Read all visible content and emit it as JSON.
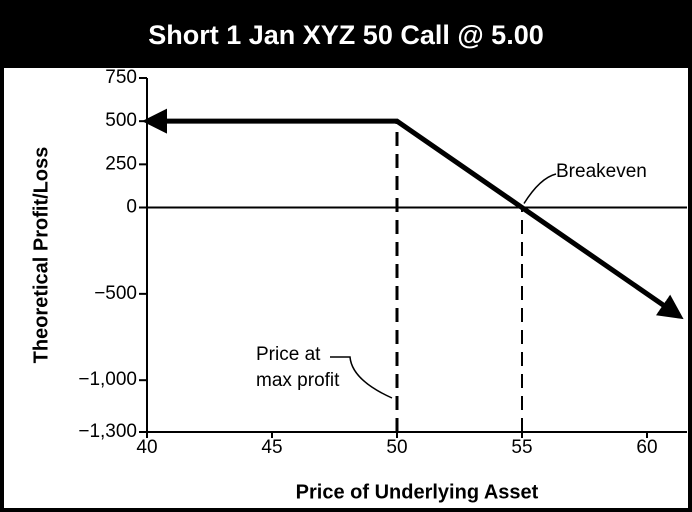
{
  "chart_data": {
    "type": "line",
    "title": "Short 1 Jan XYZ 50 Call @ 5.00",
    "x_label": "Price of Underlying Asset",
    "y_label": "Theoretical Profit/Loss",
    "x": [
      40,
      50,
      55,
      61.3
    ],
    "series": [
      {
        "color": "#000000",
        "values": [
          500,
          500,
          0,
          -630
        ]
      }
    ],
    "xlim": [
      40,
      61.6
    ],
    "xticks": [
      40,
      45,
      50,
      55,
      60
    ],
    "ylim": [
      -1300,
      750
    ],
    "yticks": [
      750,
      500,
      250,
      0,
      {
        "value": -500,
        "label": "−500"
      },
      {
        "value": -1000,
        "label": "−1,000"
      },
      {
        "value": -1300,
        "label": "−1,300"
      }
    ],
    "annotations": [
      {
        "lines": [
          "Price at",
          "max profit"
        ]
      },
      {
        "lines": [
          "Breakeven"
        ]
      }
    ],
    "grid": false
  }
}
